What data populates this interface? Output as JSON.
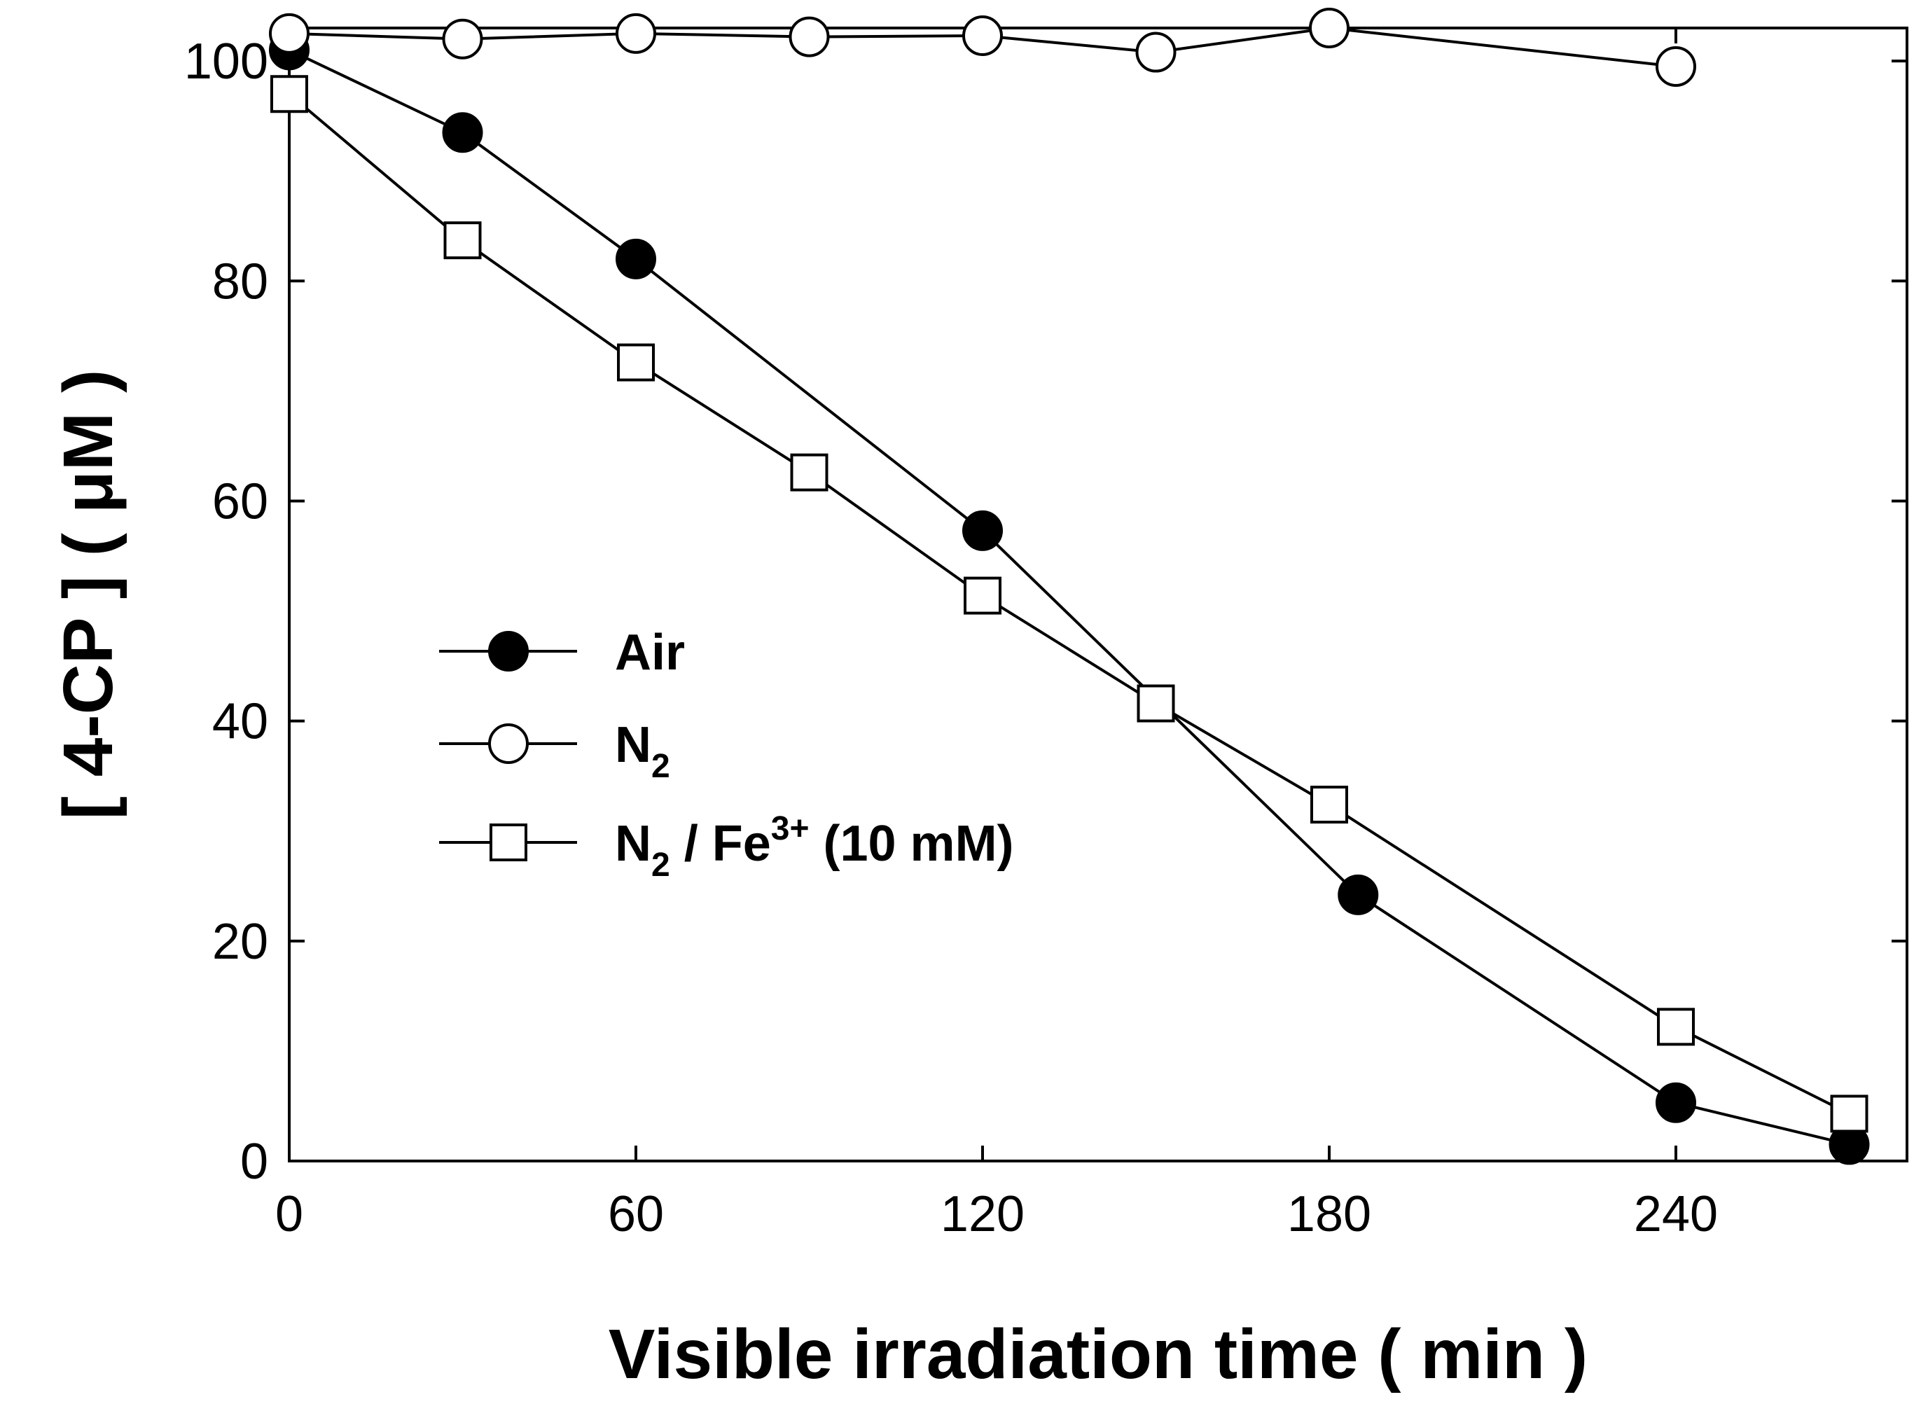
{
  "chart_data": {
    "type": "line",
    "title": "",
    "xlabel": "Visible irradiation time ( min )",
    "ylabel": "[ 4-CP ] ( μM )",
    "xlim": [
      0,
      280
    ],
    "ylim": [
      0,
      103
    ],
    "xticks": [
      0,
      60,
      120,
      180,
      240
    ],
    "yticks": [
      0,
      20,
      40,
      60,
      80,
      100
    ],
    "grid": false,
    "legend_position": "center-left",
    "series": [
      {
        "name": "Air",
        "marker": "filled-circle",
        "x": [
          0,
          30,
          60,
          120,
          185,
          240,
          270
        ],
        "y": [
          101,
          93.5,
          82,
          57.3,
          24.2,
          5.3,
          1.5
        ]
      },
      {
        "name": "N2",
        "marker": "open-circle",
        "x": [
          0,
          30,
          60,
          90,
          120,
          150,
          180,
          240
        ],
        "y": [
          102.5,
          102,
          102.5,
          102.2,
          102.3,
          100.8,
          103,
          99.5
        ]
      },
      {
        "name": "N2 / Fe3+ (10 mM)",
        "marker": "open-square",
        "x": [
          0,
          30,
          60,
          90,
          120,
          150,
          180,
          240,
          270
        ],
        "y": [
          97,
          83.7,
          72.6,
          62.6,
          51.4,
          41.6,
          32.4,
          12.2,
          4.3
        ]
      }
    ],
    "legend": [
      {
        "main": "Air",
        "sub": "",
        "sup": "",
        "rest": ""
      },
      {
        "main": "N",
        "sub": "2",
        "sup": "",
        "rest": ""
      },
      {
        "main": "N",
        "sub": "2",
        "sup": "3+",
        "rest": " (10 mM)",
        "mid": " / Fe"
      }
    ]
  }
}
